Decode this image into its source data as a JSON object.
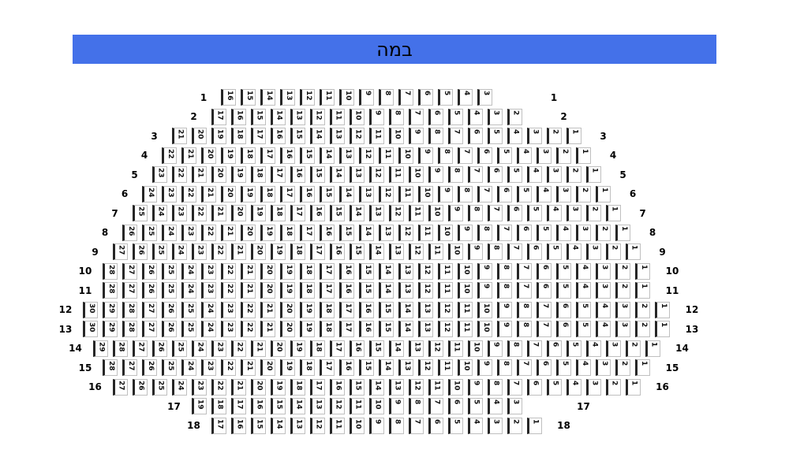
{
  "stage": {
    "label": "במה",
    "background_color": "#4471e9",
    "text_color": "#000000"
  },
  "seat_map": {
    "seat_colors": {
      "bar": "#262626",
      "border": "#bfbfbf",
      "number": "#111111"
    },
    "rows": [
      {
        "label": "1",
        "seats": [
          16,
          15,
          14,
          13,
          12,
          11,
          10,
          9,
          8,
          7,
          6,
          5,
          4,
          3
        ],
        "empty_slots_right": 2
      },
      {
        "label": "2",
        "seats": [
          17,
          16,
          15,
          14,
          13,
          12,
          11,
          10,
          9,
          8,
          7,
          6,
          5,
          4,
          3,
          2
        ],
        "empty_slots_right": 1
      },
      {
        "label": "3",
        "seats": [
          21,
          20,
          19,
          18,
          17,
          16,
          15,
          14,
          13,
          12,
          11,
          10,
          9,
          8,
          7,
          6,
          5,
          4,
          3,
          2,
          1
        ],
        "empty_slots_right": 0
      },
      {
        "label": "4",
        "seats": [
          22,
          21,
          20,
          19,
          18,
          17,
          16,
          15,
          14,
          13,
          12,
          11,
          10,
          9,
          8,
          7,
          6,
          5,
          4,
          3,
          2,
          1
        ],
        "empty_slots_right": 0
      },
      {
        "label": "5",
        "seats": [
          23,
          22,
          21,
          20,
          19,
          18,
          17,
          16,
          15,
          14,
          13,
          12,
          11,
          10,
          9,
          8,
          7,
          6,
          5,
          4,
          3,
          2,
          1
        ],
        "empty_slots_right": 0
      },
      {
        "label": "6",
        "seats": [
          24,
          23,
          22,
          21,
          20,
          19,
          18,
          17,
          16,
          15,
          14,
          13,
          12,
          11,
          10,
          9,
          8,
          7,
          6,
          5,
          4,
          3,
          2,
          1
        ],
        "empty_slots_right": 0
      },
      {
        "label": "7",
        "seats": [
          25,
          24,
          23,
          22,
          21,
          20,
          19,
          18,
          17,
          16,
          15,
          14,
          13,
          12,
          11,
          10,
          9,
          8,
          7,
          6,
          5,
          4,
          3,
          2,
          1
        ],
        "empty_slots_right": 0
      },
      {
        "label": "8",
        "seats": [
          26,
          25,
          24,
          23,
          22,
          21,
          20,
          19,
          18,
          17,
          16,
          15,
          14,
          13,
          12,
          11,
          10,
          9,
          8,
          7,
          6,
          5,
          4,
          3,
          2,
          1
        ],
        "empty_slots_right": 0
      },
      {
        "label": "9",
        "seats": [
          27,
          26,
          25,
          24,
          23,
          22,
          21,
          20,
          19,
          18,
          17,
          16,
          15,
          14,
          13,
          12,
          11,
          10,
          9,
          8,
          7,
          6,
          5,
          4,
          3,
          2,
          1
        ],
        "empty_slots_right": 0
      },
      {
        "label": "10",
        "seats": [
          28,
          27,
          26,
          25,
          24,
          23,
          22,
          21,
          20,
          19,
          18,
          17,
          16,
          15,
          14,
          13,
          12,
          11,
          10,
          9,
          8,
          7,
          6,
          5,
          4,
          3,
          2,
          1
        ],
        "empty_slots_right": 0
      },
      {
        "label": "11",
        "seats": [
          28,
          27,
          26,
          25,
          24,
          23,
          22,
          21,
          20,
          19,
          18,
          17,
          16,
          15,
          14,
          13,
          12,
          11,
          10,
          9,
          8,
          7,
          6,
          5,
          4,
          3,
          2,
          1
        ],
        "empty_slots_right": 0
      },
      {
        "label": "12",
        "seats": [
          30,
          29,
          28,
          27,
          26,
          25,
          24,
          23,
          22,
          21,
          20,
          19,
          18,
          17,
          16,
          15,
          14,
          13,
          12,
          11,
          10,
          9,
          8,
          7,
          6,
          5,
          4,
          3,
          2,
          1
        ],
        "empty_slots_right": 0
      },
      {
        "label": "13",
        "seats": [
          30,
          29,
          28,
          27,
          26,
          25,
          24,
          23,
          22,
          21,
          20,
          19,
          18,
          17,
          16,
          15,
          14,
          13,
          12,
          11,
          10,
          9,
          8,
          7,
          6,
          5,
          4,
          3,
          2,
          1
        ],
        "empty_slots_right": 0
      },
      {
        "label": "14",
        "seats": [
          29,
          28,
          27,
          26,
          25,
          24,
          23,
          22,
          21,
          20,
          19,
          18,
          17,
          16,
          15,
          14,
          13,
          12,
          11,
          10,
          9,
          8,
          7,
          6,
          5,
          4,
          3,
          2,
          1
        ],
        "empty_slots_right": 0
      },
      {
        "label": "15",
        "seats": [
          28,
          27,
          26,
          25,
          24,
          23,
          22,
          21,
          20,
          19,
          18,
          17,
          16,
          15,
          14,
          13,
          12,
          11,
          10,
          9,
          8,
          7,
          6,
          5,
          4,
          3,
          2,
          1
        ],
        "empty_slots_right": 0
      },
      {
        "label": "16",
        "seats": [
          27,
          26,
          25,
          24,
          23,
          22,
          21,
          20,
          19,
          18,
          17,
          16,
          15,
          14,
          13,
          12,
          11,
          10,
          9,
          8,
          7,
          6,
          5,
          4,
          3,
          2,
          1
        ],
        "empty_slots_right": 0
      },
      {
        "label": "17",
        "seats": [
          19,
          18,
          17,
          16,
          15,
          14,
          13,
          12,
          11,
          10,
          9,
          8,
          7,
          6,
          5,
          4,
          3
        ],
        "empty_slots_right": 2
      },
      {
        "label": "18",
        "seats": [
          17,
          16,
          15,
          14,
          13,
          12,
          11,
          10,
          9,
          8,
          7,
          6,
          5,
          4,
          3,
          2,
          1
        ],
        "empty_slots_right": 0
      }
    ]
  }
}
